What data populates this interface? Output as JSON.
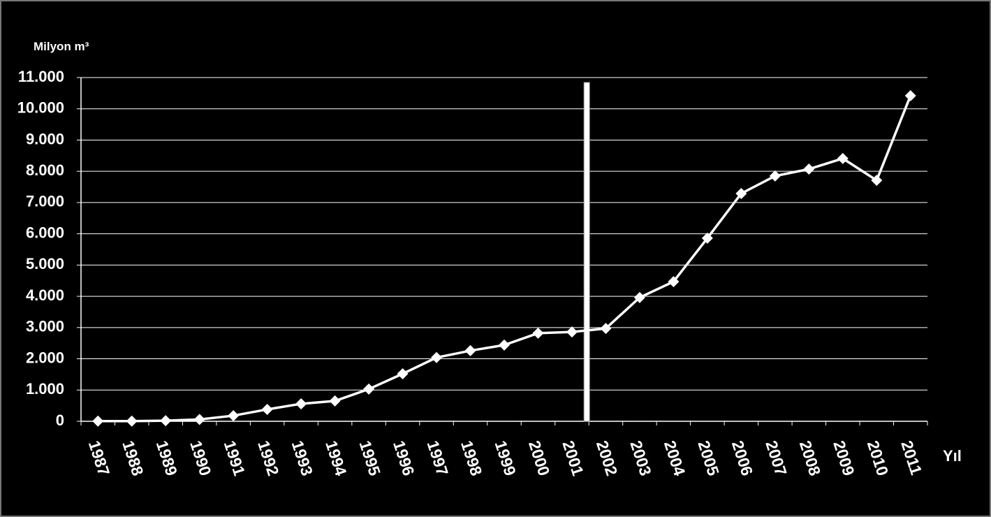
{
  "chart_data": {
    "type": "line",
    "y_label": "Milyon m³",
    "x_label": "Yıl",
    "categories": [
      "1987",
      "1988",
      "1989",
      "1990",
      "1991",
      "1992",
      "1993",
      "1994",
      "1995",
      "1996",
      "1997",
      "1998",
      "1999",
      "2000",
      "2001",
      "2002",
      "2003",
      "2004",
      "2005",
      "2006",
      "2007",
      "2008",
      "2009",
      "2010",
      "2011"
    ],
    "values": [
      5,
      5,
      20,
      60,
      180,
      380,
      560,
      650,
      1030,
      1520,
      2040,
      2260,
      2440,
      2820,
      2860,
      2970,
      3960,
      4470,
      5860,
      7290,
      7850,
      8070,
      8410,
      7710,
      10420
    ],
    "color": "#ffffff",
    "ylim": [
      0,
      11000
    ],
    "yticks": [
      0,
      {
        "value": 1000,
        "label": "1.000"
      },
      {
        "value": 2000,
        "label": "2.000"
      },
      {
        "value": 3000,
        "label": "3.000"
      },
      {
        "value": 4000,
        "label": "4.000"
      },
      {
        "value": 5000,
        "label": "5.000"
      },
      {
        "value": 6000,
        "label": "6.000"
      },
      {
        "value": 7000,
        "label": "7.000"
      },
      {
        "value": 8000,
        "label": "8.000"
      },
      {
        "value": 9000,
        "label": "9.000"
      },
      {
        "value": 10000,
        "label": "10.000"
      },
      {
        "value": 11000,
        "label": "11.000"
      }
    ],
    "grid": true
  }
}
